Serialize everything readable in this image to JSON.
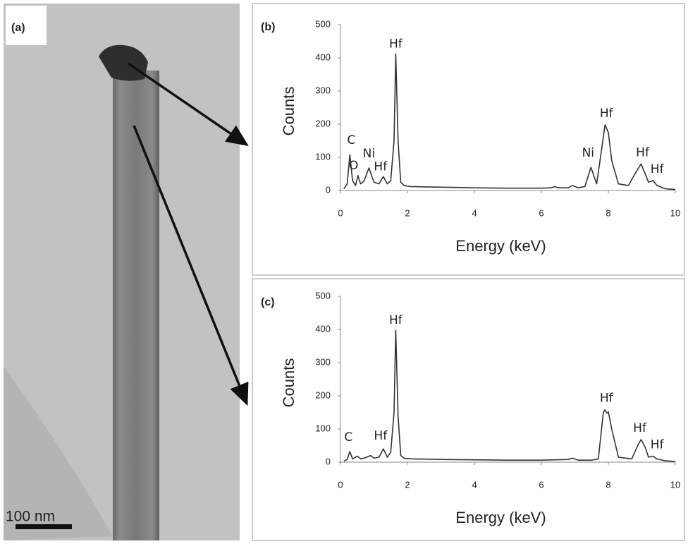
{
  "panel_a": {
    "label": "(a)",
    "scale_bar": "100 nm"
  },
  "chart_data": [
    {
      "type": "line",
      "panel_label": "(b)",
      "y_label": "Counts",
      "x_label": "Energy (keV)",
      "xlim": [
        0,
        10
      ],
      "ylim": [
        0,
        500
      ],
      "xticks": [
        0,
        2,
        4,
        6,
        8,
        10
      ],
      "yticks": [
        0,
        100,
        200,
        300,
        400,
        500
      ],
      "color": "#333333",
      "x": [
        0.1,
        0.2,
        0.28,
        0.36,
        0.45,
        0.52,
        0.6,
        0.7,
        0.85,
        1.0,
        1.15,
        1.28,
        1.4,
        1.5,
        1.6,
        1.65,
        1.72,
        1.8,
        1.9,
        2.1,
        3,
        4,
        5,
        6,
        6.3,
        6.4,
        6.5,
        6.8,
        6.93,
        7.1,
        7.3,
        7.48,
        7.65,
        7.78,
        7.9,
        8.0,
        8.1,
        8.3,
        8.6,
        8.85,
        8.98,
        9.1,
        9.2,
        9.33,
        9.45,
        9.7,
        10
      ],
      "y": [
        5,
        20,
        108,
        30,
        15,
        45,
        20,
        28,
        68,
        25,
        20,
        42,
        20,
        30,
        150,
        412,
        150,
        25,
        15,
        12,
        10,
        8,
        7,
        7,
        8,
        12,
        8,
        8,
        15,
        8,
        12,
        70,
        20,
        110,
        198,
        175,
        90,
        20,
        15,
        60,
        80,
        50,
        25,
        30,
        15,
        5,
        3
      ],
      "annotations": [
        "C",
        "O",
        "Ni",
        "Hf",
        "Hf",
        "Ni",
        "Hf",
        "Hf",
        "Hf"
      ]
    },
    {
      "type": "line",
      "panel_label": "(c)",
      "y_label": "Counts",
      "x_label": "Energy (keV)",
      "xlim": [
        0,
        10
      ],
      "ylim": [
        0,
        500
      ],
      "xticks": [
        0,
        2,
        4,
        6,
        8,
        10
      ],
      "yticks": [
        0,
        100,
        200,
        300,
        400,
        500
      ],
      "color": "#333333",
      "x": [
        0.1,
        0.2,
        0.28,
        0.36,
        0.5,
        0.6,
        0.7,
        0.9,
        1.0,
        1.15,
        1.28,
        1.4,
        1.5,
        1.6,
        1.65,
        1.72,
        1.8,
        1.9,
        2.1,
        3,
        4,
        5,
        6,
        6.8,
        6.93,
        7.1,
        7.5,
        7.7,
        7.85,
        7.9,
        7.95,
        8.0,
        8.1,
        8.3,
        8.7,
        8.9,
        8.98,
        9.1,
        9.2,
        9.33,
        9.45,
        9.7,
        10
      ],
      "y": [
        3,
        8,
        32,
        10,
        18,
        10,
        12,
        20,
        12,
        15,
        40,
        15,
        30,
        150,
        398,
        140,
        20,
        12,
        10,
        8,
        7,
        6,
        6,
        8,
        12,
        6,
        6,
        10,
        150,
        158,
        148,
        152,
        100,
        15,
        10,
        55,
        68,
        45,
        15,
        18,
        10,
        4,
        2
      ],
      "annotations": [
        "C",
        "Hf",
        "Hf",
        "Hf",
        "Hf",
        "Hf"
      ]
    }
  ]
}
